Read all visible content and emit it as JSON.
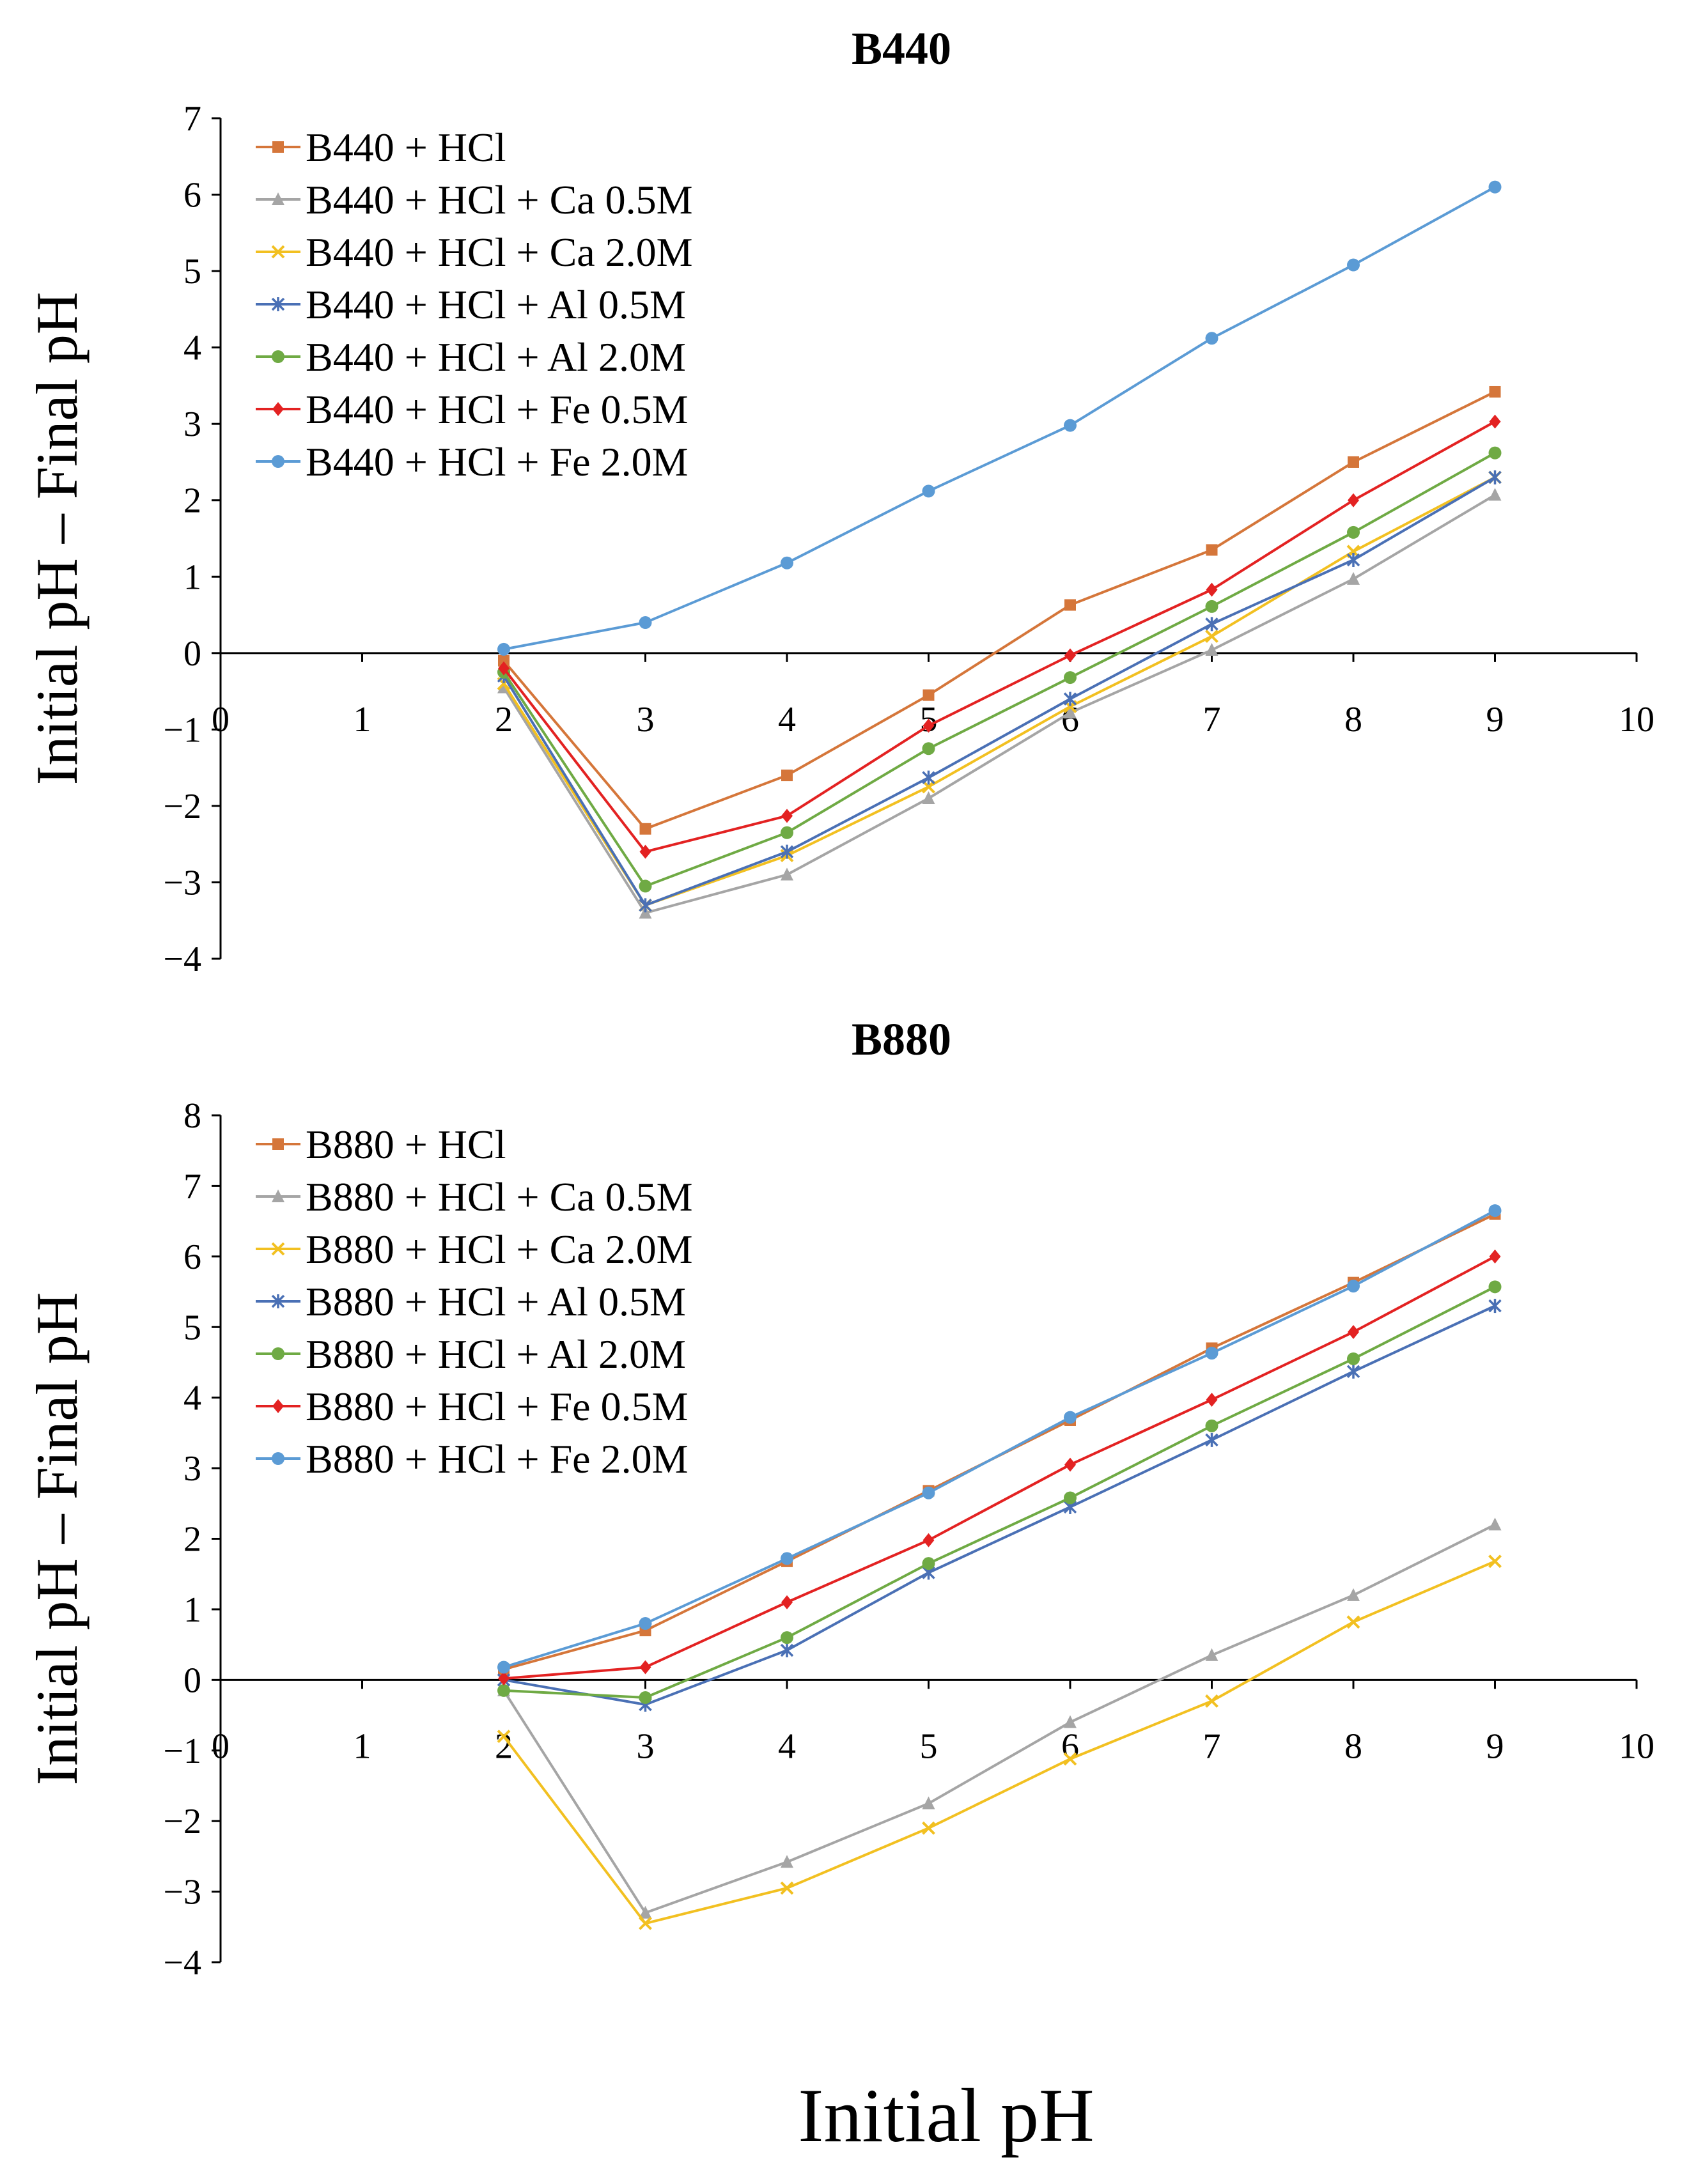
{
  "x_label": "Initial pH",
  "chart_data": [
    {
      "type": "line",
      "title": "B440",
      "ylabel": "Initial pH – Final pH",
      "xlim": [
        0,
        10
      ],
      "ylim": [
        -4,
        7
      ],
      "xticks": [
        0,
        1,
        2,
        3,
        4,
        5,
        6,
        7,
        8,
        9,
        10
      ],
      "yticks": [
        -4,
        -3,
        -2,
        -1,
        0,
        1,
        2,
        3,
        4,
        5,
        6,
        7
      ],
      "x": [
        2,
        3,
        4,
        5,
        6,
        7,
        8,
        9
      ],
      "series": [
        {
          "name": "B440 + HCl",
          "color": "#D5763A",
          "marker": "square",
          "values": [
            -0.1,
            -2.3,
            -1.6,
            -0.55,
            0.63,
            1.35,
            2.5,
            3.42
          ]
        },
        {
          "name": "B440 + HCl + Ca 0.5M",
          "color": "#A5A5A5",
          "marker": "triangle",
          "values": [
            -0.45,
            -3.4,
            -2.9,
            -1.9,
            -0.78,
            0.04,
            0.97,
            2.07
          ]
        },
        {
          "name": "B440 + HCl + Ca 2.0M",
          "color": "#F2C021",
          "marker": "x",
          "values": [
            -0.4,
            -3.3,
            -2.65,
            -1.75,
            -0.7,
            0.22,
            1.33,
            2.3
          ]
        },
        {
          "name": "B440 + HCl + Al 0.5M",
          "color": "#4A70B5",
          "marker": "star",
          "values": [
            -0.3,
            -3.3,
            -2.6,
            -1.63,
            -0.6,
            0.38,
            1.22,
            2.3
          ]
        },
        {
          "name": "B440 + HCl + Al 2.0M",
          "color": "#6FAA44",
          "marker": "circle",
          "values": [
            -0.25,
            -3.05,
            -2.35,
            -1.25,
            -0.32,
            0.61,
            1.58,
            2.62
          ]
        },
        {
          "name": "B440 + HCl + Fe 0.5M",
          "color": "#E32222",
          "marker": "diamond",
          "values": [
            -0.2,
            -2.6,
            -2.13,
            -0.95,
            -0.03,
            0.83,
            2.0,
            3.03
          ]
        },
        {
          "name": "B440 + HCl + Fe 2.0M",
          "color": "#5B9BD5",
          "marker": "circle",
          "values": [
            0.05,
            0.4,
            1.18,
            2.12,
            2.98,
            4.12,
            5.08,
            6.1
          ]
        }
      ]
    },
    {
      "type": "line",
      "title": "B880",
      "ylabel": "Initial pH – Final pH",
      "xlim": [
        0,
        10
      ],
      "ylim": [
        -4,
        8
      ],
      "xticks": [
        0,
        1,
        2,
        3,
        4,
        5,
        6,
        7,
        8,
        9,
        10
      ],
      "yticks": [
        -4,
        -3,
        -2,
        -1,
        0,
        1,
        2,
        3,
        4,
        5,
        6,
        7,
        8
      ],
      "x": [
        2,
        3,
        4,
        5,
        6,
        7,
        8,
        9
      ],
      "series": [
        {
          "name": "B880 + HCl",
          "color": "#D5763A",
          "marker": "square",
          "values": [
            0.15,
            0.7,
            1.68,
            2.68,
            3.68,
            4.7,
            5.63,
            6.6
          ]
        },
        {
          "name": "B880 + HCl + Ca 0.5M",
          "color": "#A5A5A5",
          "marker": "triangle",
          "values": [
            -0.15,
            -3.3,
            -2.58,
            -1.75,
            -0.6,
            0.35,
            1.2,
            2.2
          ]
        },
        {
          "name": "B880 + HCl + Ca 2.0M",
          "color": "#F2C021",
          "marker": "x",
          "values": [
            -0.8,
            -3.45,
            -2.95,
            -2.1,
            -1.12,
            -0.3,
            0.82,
            1.68
          ]
        },
        {
          "name": "B880 + HCl + Al 0.5M",
          "color": "#4A70B5",
          "marker": "star",
          "values": [
            0.0,
            -0.35,
            0.42,
            1.52,
            2.45,
            3.4,
            4.37,
            5.3
          ]
        },
        {
          "name": "B880 + HCl + Al 2.0M",
          "color": "#6FAA44",
          "marker": "circle",
          "values": [
            -0.15,
            -0.25,
            0.6,
            1.65,
            2.58,
            3.6,
            4.55,
            5.57
          ]
        },
        {
          "name": "B880 + HCl + Fe 0.5M",
          "color": "#E32222",
          "marker": "diamond",
          "values": [
            0.02,
            0.18,
            1.1,
            1.98,
            3.05,
            3.97,
            4.93,
            6.0
          ]
        },
        {
          "name": "B880 + HCl + Fe 2.0M",
          "color": "#5B9BD5",
          "marker": "circle",
          "values": [
            0.18,
            0.8,
            1.72,
            2.65,
            3.72,
            4.63,
            5.58,
            6.65
          ]
        }
      ]
    }
  ]
}
